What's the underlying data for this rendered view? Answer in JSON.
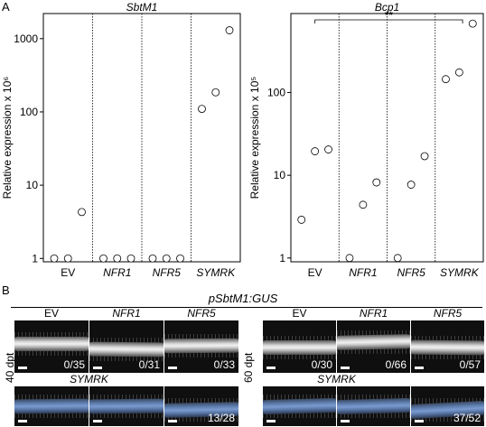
{
  "panel_a": {
    "letter": "A"
  },
  "panel_b": {
    "letter": "B",
    "title": "pSbtM1:GUS",
    "row_labels": [
      "40 dpt",
      "60 dpt"
    ],
    "left_block": {
      "top_heads": [
        "EV",
        "NFR1",
        "NFR5"
      ],
      "top_ratios": [
        "0/35",
        "0/31",
        "0/33"
      ],
      "bottom_head": "SYMRK",
      "bottom_ratio": "13/28"
    },
    "right_block": {
      "top_heads": [
        "EV",
        "NFR1",
        "NFR5"
      ],
      "top_ratios": [
        "0/30",
        "0/66",
        "0/57"
      ],
      "bottom_head": "SYMRK",
      "bottom_ratio": "37/52"
    }
  },
  "chart_data": [
    {
      "type": "scatter",
      "title": "SbtM1",
      "ylabel": "Relative expression x 10⁶",
      "yscale": "log",
      "ylim": [
        0.9,
        2200
      ],
      "yticks": [
        1,
        10,
        100,
        1000
      ],
      "ytick_labels": [
        "1",
        "10",
        "100",
        "1000"
      ],
      "categories": [
        "EV",
        "NFR1",
        "NFR5",
        "SYMRK"
      ],
      "italic_categories": [
        false,
        true,
        true,
        true
      ],
      "group_dividers": "dotted",
      "points": [
        {
          "category": "EV",
          "slot": 0,
          "y": 1.0
        },
        {
          "category": "EV",
          "slot": 1,
          "y": 1.0
        },
        {
          "category": "EV",
          "slot": 2,
          "y": 4.3
        },
        {
          "category": "NFR1",
          "slot": 0,
          "y": 1.0
        },
        {
          "category": "NFR1",
          "slot": 1,
          "y": 1.0
        },
        {
          "category": "NFR1",
          "slot": 2,
          "y": 1.0
        },
        {
          "category": "NFR5",
          "slot": 0,
          "y": 1.0
        },
        {
          "category": "NFR5",
          "slot": 1,
          "y": 1.0
        },
        {
          "category": "NFR5",
          "slot": 2,
          "y": 1.0
        },
        {
          "category": "SYMRK",
          "slot": 0,
          "y": 110
        },
        {
          "category": "SYMRK",
          "slot": 1,
          "y": 185
        },
        {
          "category": "SYMRK",
          "slot": 2,
          "y": 1300
        }
      ],
      "significance": null
    },
    {
      "type": "scatter",
      "title": "Bcp1",
      "ylabel": "Relative expression x 10⁵",
      "yscale": "log",
      "ylim": [
        0.9,
        900
      ],
      "yticks": [
        1,
        10,
        100
      ],
      "ytick_labels": [
        "1",
        "10",
        "100"
      ],
      "categories": [
        "EV",
        "NFR1",
        "NFR5",
        "SYMRK"
      ],
      "italic_categories": [
        false,
        true,
        true,
        true
      ],
      "group_dividers": "dotted",
      "points": [
        {
          "category": "EV",
          "slot": 0,
          "y": 2.9
        },
        {
          "category": "EV",
          "slot": 1,
          "y": 19.5
        },
        {
          "category": "EV",
          "slot": 2,
          "y": 20.5
        },
        {
          "category": "NFR1",
          "slot": 0,
          "y": 1.0
        },
        {
          "category": "NFR1",
          "slot": 1,
          "y": 4.4
        },
        {
          "category": "NFR1",
          "slot": 2,
          "y": 8.2
        },
        {
          "category": "NFR5",
          "slot": 0,
          "y": 1.0
        },
        {
          "category": "NFR5",
          "slot": 1,
          "y": 7.7
        },
        {
          "category": "NFR5",
          "slot": 2,
          "y": 17
        },
        {
          "category": "SYMRK",
          "slot": 0,
          "y": 145
        },
        {
          "category": "SYMRK",
          "slot": 1,
          "y": 175
        },
        {
          "category": "SYMRK",
          "slot": 2,
          "y": 680
        }
      ],
      "significance": {
        "label": "**",
        "from": "EV",
        "to": "SYMRK"
      }
    }
  ]
}
